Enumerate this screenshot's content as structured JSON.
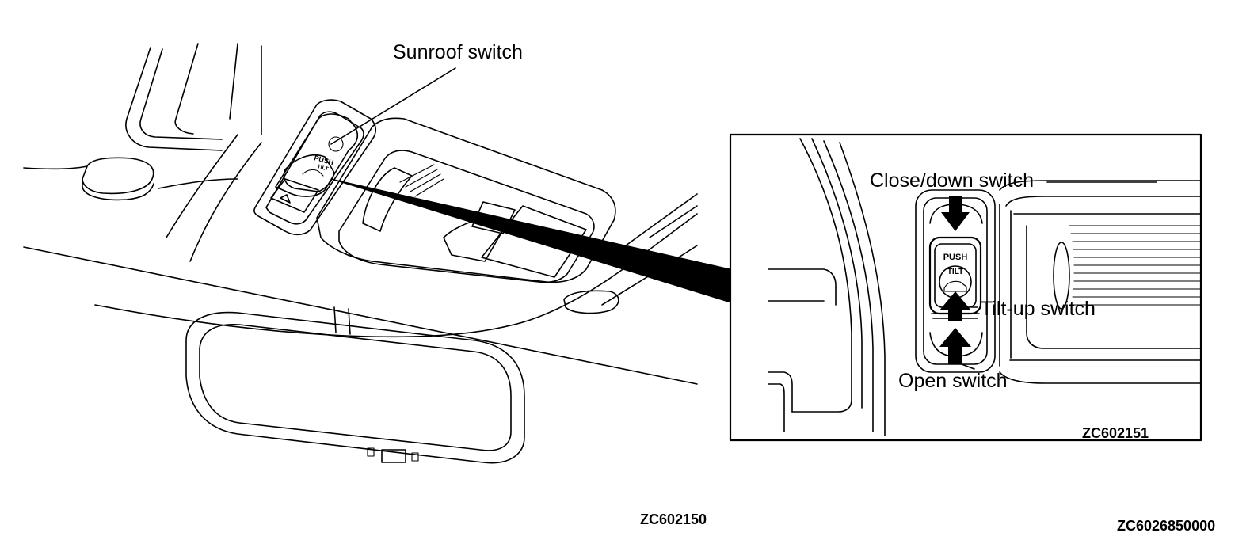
{
  "main_illustration": {
    "callout_label": "Sunroof switch",
    "switch_text_push": "PUSH",
    "switch_text_tilt": "TILT",
    "figure_code": "ZC602150"
  },
  "detail_inset": {
    "labels": {
      "close_down": "Close/down switch",
      "tilt_up": "Tilt-up switch",
      "open": "Open switch"
    },
    "switch_text_push": "PUSH",
    "switch_text_tilt": "TILT",
    "figure_code": "ZC602151"
  },
  "page_code": "ZC6026850000"
}
